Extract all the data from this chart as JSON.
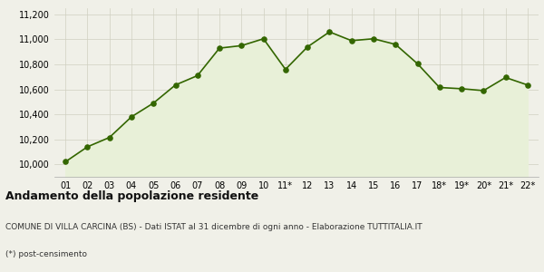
{
  "labels": [
    "01",
    "02",
    "03",
    "04",
    "05",
    "06",
    "07",
    "08",
    "09",
    "10",
    "11*",
    "12",
    "13",
    "14",
    "15",
    "16",
    "17",
    "18*",
    "19*",
    "20*",
    "21*",
    "22*"
  ],
  "values": [
    10020,
    10140,
    10215,
    10380,
    10490,
    10635,
    10710,
    10930,
    10950,
    11005,
    10760,
    10940,
    11060,
    10990,
    11005,
    10960,
    10805,
    10615,
    10605,
    10590,
    10695,
    10635
  ],
  "line_color": "#336600",
  "fill_color": "#e8f0d8",
  "marker_color": "#336600",
  "bg_color": "#f0f0e8",
  "grid_color": "#d0d0c0",
  "ylim": [
    9900,
    11250
  ],
  "yticks": [
    10000,
    10200,
    10400,
    10600,
    10800,
    11000,
    11200
  ],
  "title": "Andamento della popolazione residente",
  "subtitle": "COMUNE DI VILLA CARCINA (BS) - Dati ISTAT al 31 dicembre di ogni anno - Elaborazione TUTTITALIA.IT",
  "footnote": "(*) post-censimento",
  "title_fontsize": 9,
  "subtitle_fontsize": 6.5,
  "footnote_fontsize": 6.5,
  "tick_fontsize": 7,
  "marker_size": 14
}
